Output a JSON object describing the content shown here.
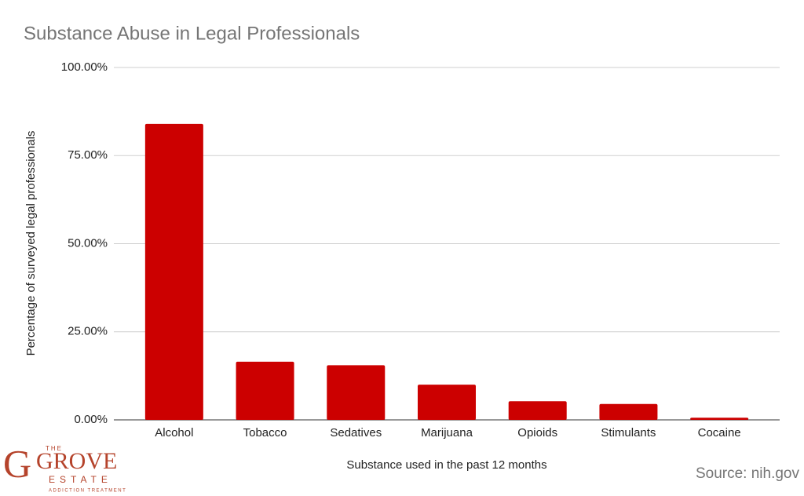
{
  "chart_data": {
    "type": "bar",
    "title": "Substance Abuse in Legal Professionals",
    "x_label": "Substance used in the past 12 months",
    "y_label": "Percentage of surveyed legal professionals",
    "categories": [
      "Alcohol",
      "Tobacco",
      "Sedatives",
      "Marijuana",
      "Opioids",
      "Stimulants",
      "Cocaine"
    ],
    "values": [
      84,
      16.5,
      15.5,
      10,
      5.3,
      4.5,
      0.6
    ],
    "color": "#cc0000",
    "ylim": [
      0,
      100
    ],
    "yticks": [
      {
        "value": 0,
        "label": "0.00%"
      },
      {
        "value": 25,
        "label": "25.00%"
      },
      {
        "value": 50,
        "label": "50.00%"
      },
      {
        "value": 75,
        "label": "75.00%"
      },
      {
        "value": 100,
        "label": "100.00%"
      }
    ],
    "grid": true,
    "source": "Source: nih.gov"
  },
  "logo": {
    "top": "THE",
    "main": "GROVE",
    "sub": "ESTATE",
    "tagline": "ADDICTION TREATMENT"
  }
}
